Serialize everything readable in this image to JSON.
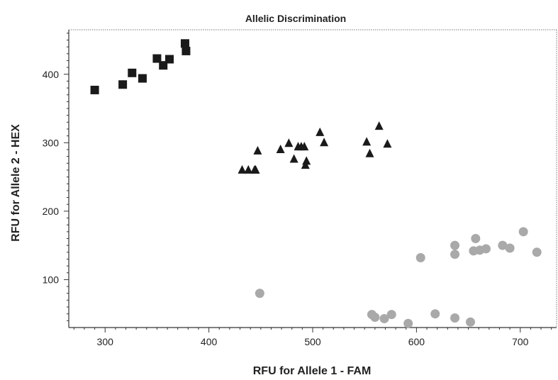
{
  "chart_data": {
    "type": "scatter",
    "title": "Allelic Discrimination",
    "xlabel": "RFU for Allele 1 - FAM",
    "ylabel": "RFU for Allele 2 - HEX",
    "xlim": [
      265,
      735
    ],
    "ylim": [
      30,
      465
    ],
    "xticks": [
      300,
      400,
      500,
      600,
      700
    ],
    "yticks": [
      100,
      200,
      300,
      400
    ],
    "grid": false,
    "legend": "none",
    "series": [
      {
        "marker": "square",
        "color": "#1a1a1a",
        "points": [
          [
            290,
            377
          ],
          [
            317,
            385
          ],
          [
            326,
            402
          ],
          [
            336,
            394
          ],
          [
            350,
            423
          ],
          [
            356,
            413
          ],
          [
            362,
            422
          ],
          [
            377,
            445
          ],
          [
            378,
            434
          ]
        ]
      },
      {
        "marker": "triangle",
        "color": "#1a1a1a",
        "points": [
          [
            432,
            260
          ],
          [
            438,
            260
          ],
          [
            444,
            260
          ],
          [
            447,
            288
          ],
          [
            469,
            290
          ],
          [
            477,
            299
          ],
          [
            482,
            276
          ],
          [
            486,
            294
          ],
          [
            489,
            294
          ],
          [
            492,
            294
          ],
          [
            493,
            267
          ],
          [
            494,
            273
          ],
          [
            507,
            315
          ],
          [
            511,
            300
          ],
          [
            552,
            301
          ],
          [
            555,
            284
          ],
          [
            564,
            324
          ],
          [
            572,
            298
          ],
          [
            445,
            260
          ]
        ]
      },
      {
        "marker": "circle",
        "color": "#a9a9a9",
        "points": [
          [
            449,
            80
          ],
          [
            557,
            49
          ],
          [
            560,
            45
          ],
          [
            569,
            43
          ],
          [
            576,
            49
          ],
          [
            592,
            36
          ],
          [
            604,
            132
          ],
          [
            618,
            50
          ],
          [
            637,
            150
          ],
          [
            637,
            137
          ],
          [
            637,
            44
          ],
          [
            652,
            38
          ],
          [
            655,
            142
          ],
          [
            657,
            160
          ],
          [
            661,
            143
          ],
          [
            667,
            145
          ],
          [
            683,
            150
          ],
          [
            690,
            146
          ],
          [
            703,
            170
          ],
          [
            716,
            140
          ]
        ]
      }
    ]
  }
}
